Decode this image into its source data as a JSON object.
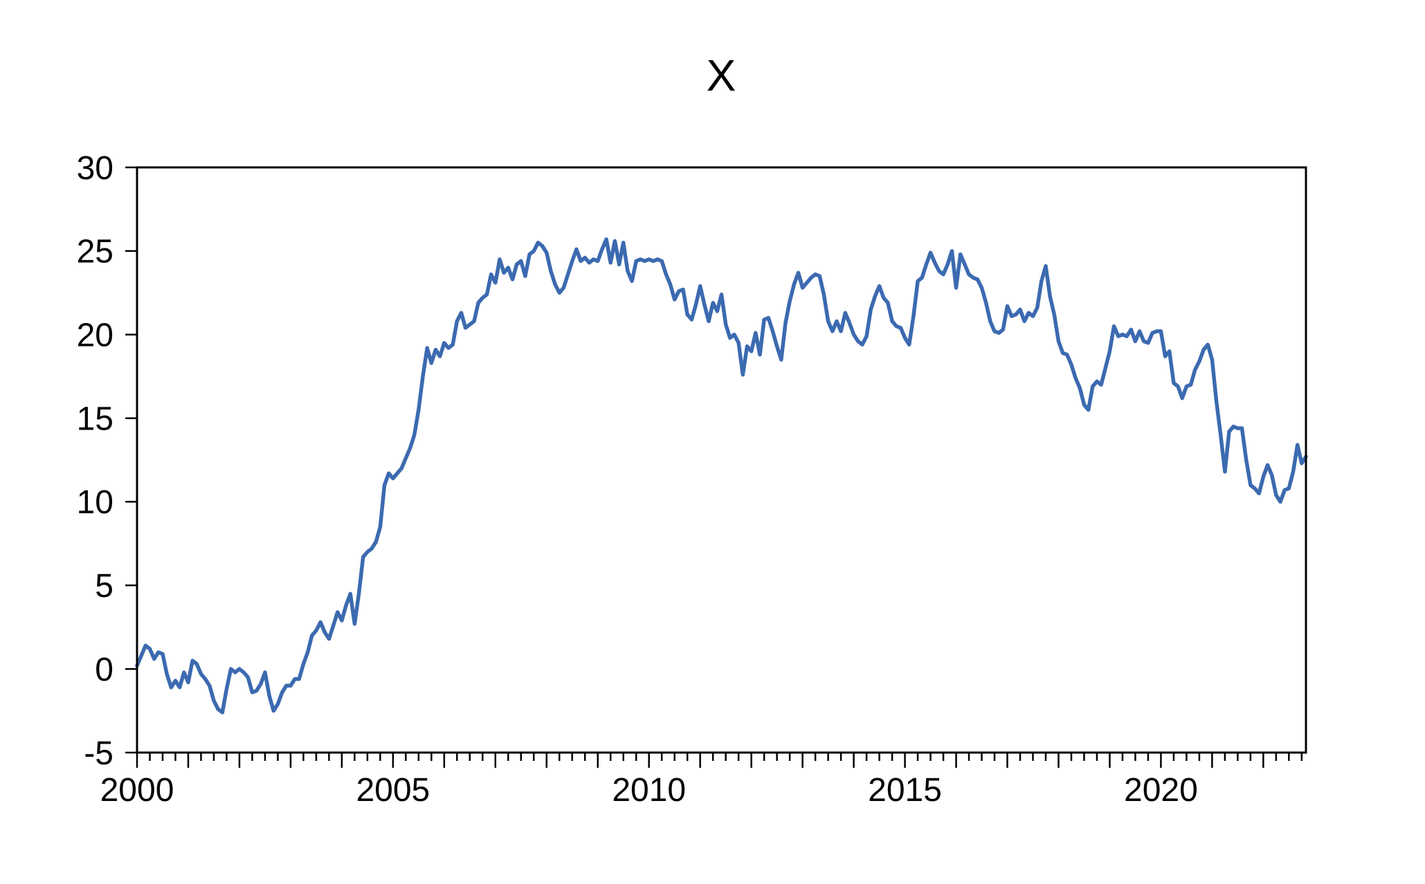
{
  "title": "X",
  "chart_data": {
    "type": "line",
    "title": "X",
    "series_name": "X",
    "frequency": "monthly",
    "x_start_year": 2000,
    "x_end": "2022-11",
    "xlabel": "",
    "ylabel": "",
    "ylim": [
      -5,
      30
    ],
    "y_ticks": [
      30,
      25,
      20,
      15,
      10,
      5,
      0,
      -5
    ],
    "x_tick_label_years": [
      2000,
      2005,
      2010,
      2015,
      2020
    ],
    "minor_tick_months": 3,
    "grid": "off",
    "legend": "none",
    "line_color": "#3C6AB0",
    "frame_color": "#000000",
    "background_color": "#ffffff",
    "values": [
      0.2,
      0.8,
      1.4,
      1.2,
      0.6,
      1.0,
      0.9,
      -0.3,
      -1.1,
      -0.7,
      -1.1,
      -0.2,
      -0.8,
      0.5,
      0.3,
      -0.3,
      -0.6,
      -1.0,
      -1.9,
      -2.4,
      -2.6,
      -1.2,
      0.0,
      -0.2,
      0.0,
      -0.2,
      -0.5,
      -1.4,
      -1.3,
      -0.9,
      -0.2,
      -1.6,
      -2.5,
      -2.1,
      -1.4,
      -1.0,
      -1.0,
      -0.6,
      -0.6,
      0.3,
      1.0,
      2.0,
      2.3,
      2.8,
      2.2,
      1.8,
      2.6,
      3.4,
      2.9,
      3.8,
      4.5,
      2.7,
      4.5,
      6.7,
      7.0,
      7.2,
      7.6,
      8.5,
      11.0,
      11.7,
      11.4,
      11.7,
      12.0,
      12.6,
      13.2,
      14.0,
      15.5,
      17.5,
      19.2,
      18.3,
      19.1,
      18.7,
      19.5,
      19.2,
      19.4,
      20.8,
      21.3,
      20.4,
      20.6,
      20.8,
      21.9,
      22.2,
      22.4,
      23.6,
      23.1,
      24.5,
      23.7,
      24.0,
      23.3,
      24.2,
      24.4,
      23.5,
      24.8,
      25.0,
      25.5,
      25.3,
      24.9,
      23.8,
      23.0,
      22.5,
      22.8,
      23.6,
      24.4,
      25.1,
      24.4,
      24.6,
      24.3,
      24.5,
      24.4,
      25.1,
      25.7,
      24.3,
      25.6,
      24.2,
      25.5,
      23.8,
      23.2,
      24.4,
      24.5,
      24.4,
      24.5,
      24.4,
      24.5,
      24.4,
      23.6,
      23.0,
      22.1,
      22.6,
      22.7,
      21.2,
      20.9,
      21.8,
      22.9,
      21.8,
      20.8,
      21.9,
      21.4,
      22.4,
      20.6,
      19.8,
      20.0,
      19.5,
      17.6,
      19.3,
      19.0,
      20.1,
      18.8,
      20.9,
      21.0,
      20.2,
      19.3,
      18.5,
      20.7,
      22.0,
      23.0,
      23.7,
      22.8,
      23.1,
      23.4,
      23.6,
      23.5,
      22.4,
      20.8,
      20.2,
      20.8,
      20.2,
      21.3,
      20.7,
      20.0,
      19.6,
      19.4,
      19.9,
      21.5,
      22.3,
      22.9,
      22.2,
      21.9,
      20.8,
      20.5,
      20.4,
      19.8,
      19.4,
      21.1,
      23.2,
      23.4,
      24.2,
      24.9,
      24.3,
      23.8,
      23.6,
      24.2,
      25.0,
      22.8,
      24.8,
      24.2,
      23.6,
      23.4,
      23.3,
      22.8,
      21.9,
      20.8,
      20.2,
      20.1,
      20.3,
      21.7,
      21.1,
      21.2,
      21.5,
      20.8,
      21.3,
      21.1,
      21.6,
      23.2,
      24.1,
      22.3,
      21.2,
      19.6,
      18.9,
      18.8,
      18.2,
      17.4,
      16.8,
      15.8,
      15.5,
      16.9,
      17.2,
      17.0,
      18.0,
      19.0,
      20.5,
      19.9,
      20.0,
      19.9,
      20.3,
      19.6,
      20.2,
      19.6,
      19.5,
      20.1,
      20.2,
      20.2,
      18.7,
      19.0,
      17.1,
      16.9,
      16.2,
      16.9,
      17.0,
      17.9,
      18.4,
      19.1,
      19.4,
      18.5,
      16.0,
      14.0,
      11.8,
      14.2,
      14.5,
      14.4,
      14.4,
      12.5,
      11.0,
      10.8,
      10.5,
      11.5,
      12.2,
      11.6,
      10.4,
      10.0,
      10.7,
      10.8,
      11.8,
      13.4,
      12.3,
      12.7
    ]
  }
}
